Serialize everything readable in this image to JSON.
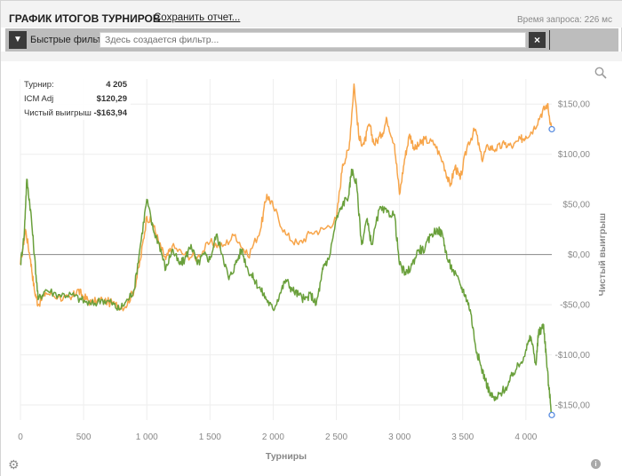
{
  "header": {
    "title": "ГРАФИК ИТОГОВ ТУРНИРОВ",
    "save_report": "Сохранить отчет...",
    "query_time": "Время запроса: 226 мс"
  },
  "filter_bar": {
    "label": "Быстрые фильтры",
    "placeholder": "Здесь создается фильтр...",
    "clear_icon": "close-icon",
    "filter_icon": "funnel-icon"
  },
  "stats": [
    {
      "label": "Турнир:",
      "value": "4 205"
    },
    {
      "label": "ICM Adj",
      "value": "$120,29"
    },
    {
      "label": "Чистый выигрыш",
      "value": "-$163,94"
    }
  ],
  "icons": {
    "zoom": "zoom-icon",
    "settings": "gear-icon",
    "info": "info-icon"
  },
  "colors": {
    "icm_line": "#f7a54a",
    "net_line": "#6aa03c",
    "zero_line": "#8a8a8a",
    "grid": "#eeeeee",
    "endpoint": "#5b8ee0"
  },
  "chart_data": {
    "type": "line",
    "xlabel": "Турниры",
    "ylabel": "Чистый выигрыш",
    "xlim": [
      0,
      4205
    ],
    "ylim": [
      -165,
      175
    ],
    "x_ticks": [
      0,
      500,
      1000,
      1500,
      2000,
      2500,
      3000,
      3500,
      4000
    ],
    "x_tick_labels": [
      "0",
      "500",
      "1 000",
      "1 500",
      "2 000",
      "2 500",
      "3 000",
      "3 500",
      "4 000"
    ],
    "y_ticks": [
      150,
      100,
      50,
      0,
      -50,
      -100,
      -150
    ],
    "y_tick_labels": [
      "$150,00",
      "$100,00",
      "$50,00",
      "$0,00",
      "-$50,00",
      "-$100,00",
      "-$150,00"
    ],
    "y_axis_position": "right",
    "grid": true,
    "series": [
      {
        "color_key": "icm_line",
        "points": [
          [
            0,
            -10
          ],
          [
            40,
            25
          ],
          [
            80,
            -5
          ],
          [
            110,
            -35
          ],
          [
            140,
            -50
          ],
          [
            200,
            -38
          ],
          [
            300,
            -42
          ],
          [
            400,
            -45
          ],
          [
            450,
            -35
          ],
          [
            500,
            -42
          ],
          [
            560,
            -48
          ],
          [
            650,
            -45
          ],
          [
            750,
            -50
          ],
          [
            830,
            -52
          ],
          [
            900,
            -35
          ],
          [
            950,
            -5
          ],
          [
            1000,
            38
          ],
          [
            1050,
            30
          ],
          [
            1100,
            10
          ],
          [
            1150,
            -5
          ],
          [
            1200,
            8
          ],
          [
            1300,
            0
          ],
          [
            1400,
            -3
          ],
          [
            1500,
            12
          ],
          [
            1600,
            8
          ],
          [
            1700,
            20
          ],
          [
            1800,
            -2
          ],
          [
            1900,
            25
          ],
          [
            1950,
            60
          ],
          [
            2000,
            48
          ],
          [
            2100,
            20
          ],
          [
            2200,
            10
          ],
          [
            2300,
            22
          ],
          [
            2400,
            25
          ],
          [
            2500,
            35
          ],
          [
            2550,
            90
          ],
          [
            2600,
            105
          ],
          [
            2640,
            170
          ],
          [
            2680,
            115
          ],
          [
            2720,
            110
          ],
          [
            2760,
            130
          ],
          [
            2800,
            110
          ],
          [
            2860,
            120
          ],
          [
            2900,
            135
          ],
          [
            2960,
            110
          ],
          [
            3000,
            60
          ],
          [
            3040,
            95
          ],
          [
            3080,
            120
          ],
          [
            3120,
            105
          ],
          [
            3160,
            110
          ],
          [
            3200,
            115
          ],
          [
            3280,
            110
          ],
          [
            3350,
            90
          ],
          [
            3400,
            68
          ],
          [
            3440,
            88
          ],
          [
            3480,
            75
          ],
          [
            3540,
            110
          ],
          [
            3600,
            125
          ],
          [
            3650,
            95
          ],
          [
            3700,
            108
          ],
          [
            3760,
            105
          ],
          [
            3830,
            110
          ],
          [
            3900,
            108
          ],
          [
            3960,
            115
          ],
          [
            4000,
            118
          ],
          [
            4060,
            125
          ],
          [
            4120,
            140
          ],
          [
            4170,
            150
          ],
          [
            4205,
            125
          ]
        ]
      },
      {
        "color_key": "net_line",
        "points": [
          [
            0,
            -10
          ],
          [
            30,
            20
          ],
          [
            50,
            75
          ],
          [
            80,
            45
          ],
          [
            110,
            0
          ],
          [
            140,
            -45
          ],
          [
            200,
            -35
          ],
          [
            300,
            -40
          ],
          [
            400,
            -40
          ],
          [
            480,
            -45
          ],
          [
            560,
            -50
          ],
          [
            650,
            -45
          ],
          [
            720,
            -48
          ],
          [
            780,
            -55
          ],
          [
            850,
            -45
          ],
          [
            900,
            -35
          ],
          [
            950,
            10
          ],
          [
            1000,
            55
          ],
          [
            1050,
            25
          ],
          [
            1100,
            10
          ],
          [
            1150,
            -15
          ],
          [
            1200,
            5
          ],
          [
            1260,
            -10
          ],
          [
            1300,
            -5
          ],
          [
            1350,
            10
          ],
          [
            1400,
            -10
          ],
          [
            1450,
            0
          ],
          [
            1500,
            -5
          ],
          [
            1550,
            20
          ],
          [
            1600,
            0
          ],
          [
            1650,
            -25
          ],
          [
            1700,
            -10
          ],
          [
            1750,
            5
          ],
          [
            1800,
            -15
          ],
          [
            1850,
            -25
          ],
          [
            1900,
            -35
          ],
          [
            1950,
            -45
          ],
          [
            2000,
            -55
          ],
          [
            2050,
            -40
          ],
          [
            2100,
            -25
          ],
          [
            2150,
            -35
          ],
          [
            2200,
            -40
          ],
          [
            2250,
            -45
          ],
          [
            2300,
            -40
          ],
          [
            2340,
            -50
          ],
          [
            2380,
            -25
          ],
          [
            2400,
            -10
          ],
          [
            2440,
            -5
          ],
          [
            2500,
            35
          ],
          [
            2550,
            50
          ],
          [
            2600,
            60
          ],
          [
            2620,
            85
          ],
          [
            2660,
            70
          ],
          [
            2700,
            10
          ],
          [
            2740,
            35
          ],
          [
            2780,
            10
          ],
          [
            2840,
            45
          ],
          [
            2900,
            42
          ],
          [
            2960,
            40
          ],
          [
            3000,
            -10
          ],
          [
            3050,
            -20
          ],
          [
            3100,
            -10
          ],
          [
            3150,
            5
          ],
          [
            3200,
            5
          ],
          [
            3250,
            20
          ],
          [
            3300,
            25
          ],
          [
            3340,
            20
          ],
          [
            3380,
            -5
          ],
          [
            3420,
            -15
          ],
          [
            3480,
            -30
          ],
          [
            3520,
            -40
          ],
          [
            3560,
            -55
          ],
          [
            3600,
            -90
          ],
          [
            3640,
            -110
          ],
          [
            3680,
            -125
          ],
          [
            3720,
            -140
          ],
          [
            3760,
            -145
          ],
          [
            3800,
            -138
          ],
          [
            3860,
            -130
          ],
          [
            3900,
            -118
          ],
          [
            3960,
            -108
          ],
          [
            4000,
            -95
          ],
          [
            4040,
            -82
          ],
          [
            4080,
            -110
          ],
          [
            4100,
            -78
          ],
          [
            4120,
            -75
          ],
          [
            4140,
            -70
          ],
          [
            4160,
            -100
          ],
          [
            4180,
            -130
          ],
          [
            4205,
            -160
          ]
        ]
      }
    ]
  }
}
